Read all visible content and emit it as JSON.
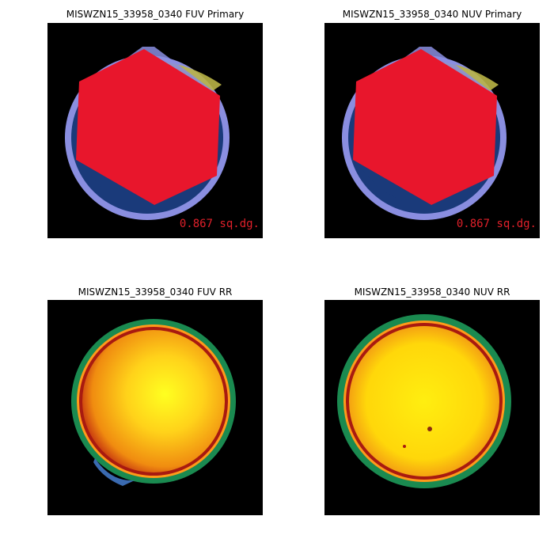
{
  "panels": {
    "fuv_primary": {
      "title": "MISWZN15_33958_0340 FUV Primary",
      "area_label": "0.867 sq.dg."
    },
    "nuv_primary": {
      "title": "MISWZN15_33958_0340 NUV Primary",
      "area_label": "0.867 sq.dg."
    },
    "fuv_rr": {
      "title": "MISWZN15_33958_0340 FUV RR"
    },
    "nuv_rr": {
      "title": "MISWZN15_33958_0340 NUV RR"
    }
  },
  "colors": {
    "background": "#000000",
    "hexagon": "#e8162c",
    "disk_outer": "#8a8ee0",
    "disk_inner": "#1a3a7a",
    "highlight_cap": "#b9b446",
    "rr_ring_green": "#1a8a50",
    "rr_ring_red": "#a81a10",
    "rr_center": "#ffff20",
    "area_text": "#e0202a"
  }
}
